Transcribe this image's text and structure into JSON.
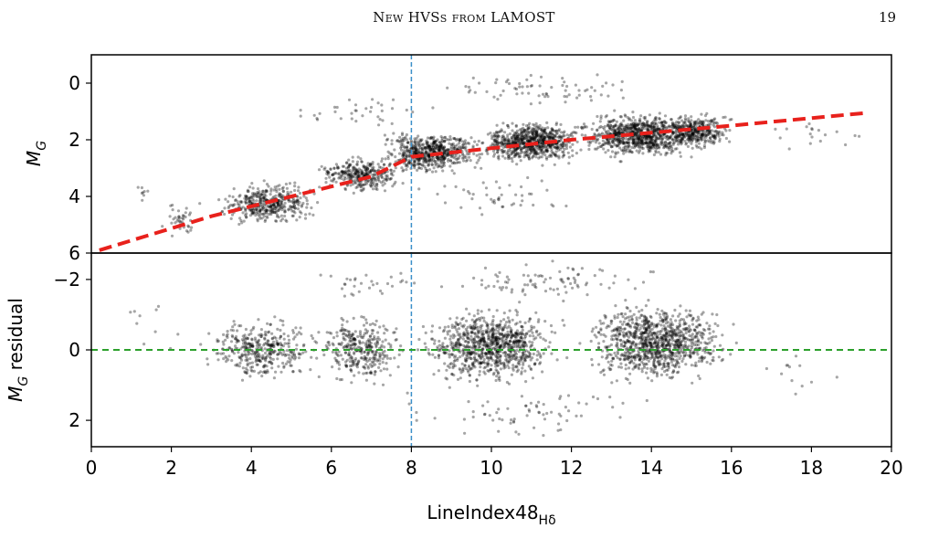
{
  "page_header": {
    "title": "New HVSs from LAMOST",
    "page_number": "19"
  },
  "chart_data": [
    {
      "type": "scatter",
      "panel": "top",
      "title": "",
      "ylabel": "M",
      "ylabel_sub": "G",
      "xlim": [
        0,
        20
      ],
      "ylim": [
        6,
        -1
      ],
      "y_inverted": true,
      "xticks": [],
      "yticks": [
        "0",
        "2",
        "4",
        "6"
      ],
      "grid": false,
      "point_color": "#000000",
      "point_alpha": 0.35,
      "fit_line": {
        "color": "#e8211c",
        "style": "dashed",
        "x": [
          0.2,
          3.0,
          5.0,
          7.0,
          8.0,
          10.0,
          12.0,
          14.0,
          16.0,
          19.4
        ],
        "y": [
          5.9,
          4.7,
          4.0,
          3.3,
          2.6,
          2.3,
          2.0,
          1.75,
          1.5,
          1.05
        ]
      },
      "vline": {
        "x": 8,
        "color": "#3b8fc9",
        "style": "dashed"
      },
      "series": [
        {
          "clusters": [
            {
              "x": [
                0.9,
                1.6
              ],
              "y": [
                3.2,
                4.4
              ],
              "n": 8
            },
            {
              "x": [
                1.5,
                3.0
              ],
              "y": [
                4.0,
                5.6
              ],
              "n": 40
            },
            {
              "x": [
                3.0,
                5.8
              ],
              "y": [
                3.4,
                5.1
              ],
              "n": 420
            },
            {
              "x": [
                5.5,
                8.0
              ],
              "y": [
                2.5,
                4.0
              ],
              "n": 330
            },
            {
              "x": [
                7.0,
                10.0
              ],
              "y": [
                1.6,
                3.3
              ],
              "n": 600
            },
            {
              "x": [
                9.5,
                12.5
              ],
              "y": [
                1.2,
                3.0
              ],
              "n": 750
            },
            {
              "x": [
                12.0,
                15.5
              ],
              "y": [
                0.9,
                2.8
              ],
              "n": 820
            },
            {
              "x": [
                14.0,
                16.2
              ],
              "y": [
                1.0,
                2.4
              ],
              "n": 350
            },
            {
              "x": [
                4.5,
                9.0
              ],
              "y": [
                0.3,
                1.8
              ],
              "n": 35
            },
            {
              "x": [
                8.0,
                15.0
              ],
              "y": [
                -0.6,
                1.0
              ],
              "n": 70
            },
            {
              "x": [
                7.5,
                13.0
              ],
              "y": [
                3.2,
                4.8
              ],
              "n": 45
            },
            {
              "x": [
                16.0,
                19.5
              ],
              "y": [
                1.0,
                3.0
              ],
              "n": 18
            }
          ]
        }
      ]
    },
    {
      "type": "scatter",
      "panel": "bottom",
      "title": "",
      "xlabel": "LineIndex48",
      "xlabel_sub": "Hδ",
      "ylabel": "M",
      "ylabel_sub": "G",
      "ylabel_suffix": " residual",
      "xlim": [
        0,
        20
      ],
      "ylim": [
        2.75,
        -2.75
      ],
      "y_inverted": true,
      "xticks": [
        "0",
        "2",
        "4",
        "6",
        "8",
        "10",
        "12",
        "14",
        "16",
        "18",
        "20"
      ],
      "yticks": [
        "−2",
        "0",
        "2"
      ],
      "grid": false,
      "point_color": "#000000",
      "point_alpha": 0.35,
      "hline": {
        "y": 0,
        "color": "#2ca02c",
        "style": "dashed"
      },
      "vline": {
        "x": 8,
        "color": "#3b8fc9",
        "style": "dashed"
      },
      "series": [
        {
          "clusters": [
            {
              "x": [
                0.2,
                2.5
              ],
              "y": [
                -2.0,
                0.5
              ],
              "n": 10
            },
            {
              "x": [
                2.5,
                6.0
              ],
              "y": [
                -1.0,
                1.0
              ],
              "n": 380
            },
            {
              "x": [
                5.5,
                8.0
              ],
              "y": [
                -1.2,
                1.2
              ],
              "n": 330
            },
            {
              "x": [
                8.0,
                12.0
              ],
              "y": [
                -1.4,
                1.2
              ],
              "n": 900
            },
            {
              "x": [
                12.0,
                16.3
              ],
              "y": [
                -1.5,
                1.1
              ],
              "n": 1000
            },
            {
              "x": [
                8.0,
                15.0
              ],
              "y": [
                -2.6,
                -1.2
              ],
              "n": 90
            },
            {
              "x": [
                5.0,
                9.0
              ],
              "y": [
                -2.6,
                -1.2
              ],
              "n": 30
            },
            {
              "x": [
                7.0,
                15.0
              ],
              "y": [
                1.0,
                2.6
              ],
              "n": 70
            },
            {
              "x": [
                16.0,
                19.3
              ],
              "y": [
                -0.8,
                1.6
              ],
              "n": 12
            }
          ]
        }
      ]
    }
  ]
}
